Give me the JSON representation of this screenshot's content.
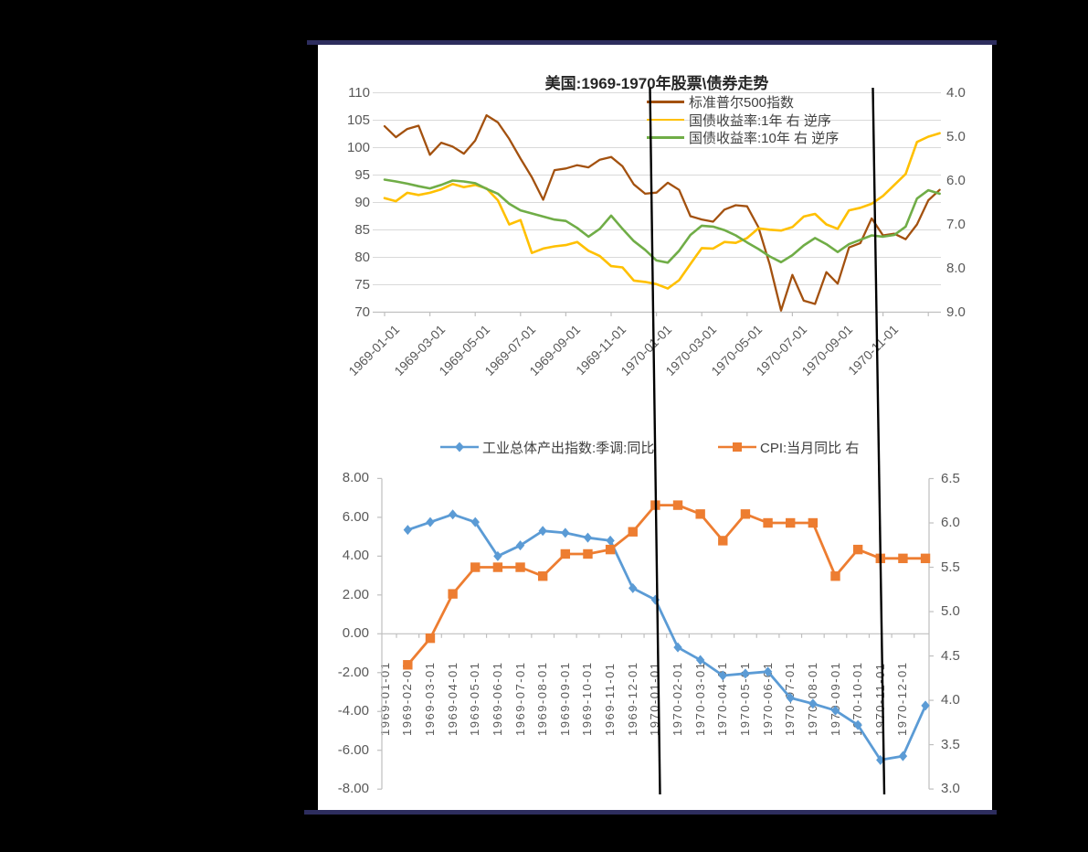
{
  "page": {
    "background_color": "#000000",
    "panel_color": "#ffffff",
    "border_rule_color": "#2D2D5E",
    "annotation_line_color": "#000000"
  },
  "chart_data": [
    {
      "type": "line",
      "title": "美国:1969-1970年股票\\债券走势",
      "x_unit": "months since 1969-01-01",
      "x_step_months": 0.5,
      "x_tick_labels": [
        "1969-01-01",
        "1969-03-01",
        "1969-05-01",
        "1969-07-01",
        "1969-09-01",
        "1969-11-01",
        "1970-01-01",
        "1970-03-01",
        "1970-05-01",
        "1970-07-01",
        "1970-09-01",
        "1970-11-01"
      ],
      "left_axis": {
        "min": 70,
        "max": 110,
        "tick_step": 5,
        "ticks": [
          "110",
          "105",
          "100",
          "95",
          "90",
          "85",
          "80",
          "75",
          "70"
        ]
      },
      "right_axis": {
        "min": 4.0,
        "max": 9.0,
        "reversed": true,
        "ticks": [
          "4.0",
          "5.0",
          "6.0",
          "7.0",
          "8.0",
          "9.0"
        ]
      },
      "grid": "horizontal",
      "legend_position": "top-right-inside",
      "legend": [
        {
          "name": "标准普尔500指数",
          "color": "#A3510F",
          "axis": "left"
        },
        {
          "name": "国债收益率:1年 右 逆序",
          "color": "#FFC000",
          "axis": "right"
        },
        {
          "name": "国债收益率:10年 右 逆序",
          "color": "#70AD47",
          "axis": "right"
        }
      ],
      "series": [
        {
          "name": "标准普尔500指数",
          "color": "#A3510F",
          "axis": "left",
          "values": [
            103.9,
            101.9,
            103.4,
            104.0,
            98.7,
            100.9,
            100.2,
            98.9,
            101.3,
            105.9,
            104.6,
            101.6,
            98.0,
            94.6,
            90.5,
            95.9,
            96.2,
            96.8,
            96.4,
            97.8,
            98.3,
            96.6,
            93.3,
            91.6,
            91.8,
            93.6,
            92.3,
            87.5,
            86.9,
            86.5,
            88.7,
            89.5,
            89.3,
            85.5,
            78.7,
            70.3,
            76.8,
            72.1,
            71.5,
            77.3,
            75.2,
            81.8,
            82.6,
            87.1,
            84.0,
            84.3,
            83.3,
            86.0,
            90.4,
            92.3
          ]
        },
        {
          "name": "国债收益率:1年 右 逆序",
          "color": "#FFC000",
          "axis": "right",
          "values": [
            6.4,
            6.47,
            6.28,
            6.33,
            6.28,
            6.2,
            6.08,
            6.15,
            6.1,
            6.18,
            6.45,
            7.0,
            6.9,
            7.65,
            7.55,
            7.5,
            7.47,
            7.4,
            7.6,
            7.72,
            7.95,
            7.98,
            8.28,
            8.31,
            8.36,
            8.46,
            8.27,
            7.9,
            7.54,
            7.55,
            7.4,
            7.42,
            7.31,
            7.09,
            7.12,
            7.14,
            7.06,
            6.82,
            6.76,
            7.0,
            7.1,
            6.68,
            6.62,
            6.53,
            6.35,
            6.1,
            5.85,
            5.12,
            5.0,
            4.92
          ]
        },
        {
          "name": "国债收益率:10年 右 逆序",
          "color": "#70AD47",
          "axis": "right",
          "values": [
            5.98,
            6.02,
            6.07,
            6.13,
            6.18,
            6.1,
            6.0,
            6.02,
            6.06,
            6.19,
            6.3,
            6.53,
            6.68,
            6.75,
            6.82,
            6.89,
            6.92,
            7.08,
            7.28,
            7.1,
            6.8,
            7.1,
            7.38,
            7.58,
            7.82,
            7.87,
            7.6,
            7.24,
            7.03,
            7.05,
            7.13,
            7.25,
            7.41,
            7.56,
            7.73,
            7.86,
            7.7,
            7.48,
            7.31,
            7.45,
            7.63,
            7.45,
            7.35,
            7.25,
            7.28,
            7.24,
            7.05,
            6.41,
            6.22,
            6.3
          ]
        }
      ],
      "annotations": [
        {
          "type": "vertical-line",
          "at": "1970-01-01"
        },
        {
          "type": "vertical-line",
          "at": "1970-11-01"
        }
      ]
    },
    {
      "type": "line",
      "title": "",
      "categories": [
        "1969-01-01",
        "1969-02-01",
        "1969-03-01",
        "1969-04-01",
        "1969-05-01",
        "1969-06-01",
        "1969-07-01",
        "1969-08-01",
        "1969-09-01",
        "1969-10-01",
        "1969-11-01",
        "1969-12-01",
        "1970-01-01",
        "1970-02-01",
        "1970-03-01",
        "1970-04-01",
        "1970-05-01",
        "1970-06-01",
        "1970-07-01",
        "1970-08-01",
        "1970-09-01",
        "1970-10-01",
        "1970-11-01",
        "1970-12-01"
      ],
      "series_note": "both series start at 1969-02 and extend one point past the last label (to 1971-01)",
      "left_axis": {
        "min": -8,
        "max": 8,
        "ticks": [
          "8.00",
          "6.00",
          "4.00",
          "2.00",
          "0.00",
          "-2.00",
          "-4.00",
          "-6.00",
          "-8.00"
        ]
      },
      "right_axis": {
        "min": 3.0,
        "max": 6.5,
        "ticks": [
          "6.5",
          "6.0",
          "5.5",
          "5.0",
          "4.5",
          "4.0",
          "3.5",
          "3.0"
        ]
      },
      "grid": "none",
      "legend_position": "top-center",
      "legend": [
        {
          "name": "工业总体产出指数:季调:同比",
          "color": "#5B9BD5",
          "marker": "diamond",
          "axis": "left"
        },
        {
          "name": "CPI:当月同比 右",
          "color": "#ED7D31",
          "marker": "square",
          "axis": "right"
        }
      ],
      "series": [
        {
          "name": "工业总体产出指数:季调:同比",
          "color": "#5B9BD5",
          "marker": "diamond",
          "axis": "left",
          "start_offset": 1,
          "values": [
            5.35,
            5.75,
            6.15,
            5.75,
            4.0,
            4.55,
            5.3,
            5.2,
            4.95,
            4.8,
            2.35,
            1.75,
            -0.7,
            -1.35,
            -2.15,
            -2.05,
            -1.95,
            -3.3,
            -3.6,
            -3.95,
            -4.7,
            -6.5,
            -6.3,
            -3.7
          ]
        },
        {
          "name": "CPI:当月同比 右",
          "color": "#ED7D31",
          "marker": "square",
          "axis": "right",
          "start_offset": 1,
          "values": [
            4.4,
            4.7,
            5.2,
            5.5,
            5.5,
            5.5,
            5.4,
            5.65,
            5.65,
            5.7,
            5.9,
            6.2,
            6.2,
            6.1,
            5.8,
            6.1,
            6.0,
            6.0,
            6.0,
            5.4,
            5.7,
            5.6,
            5.6,
            5.6
          ]
        }
      ],
      "annotations": [
        {
          "type": "vertical-line",
          "at": "1970-01-01"
        },
        {
          "type": "vertical-line",
          "at": "1970-11-01"
        }
      ]
    }
  ]
}
